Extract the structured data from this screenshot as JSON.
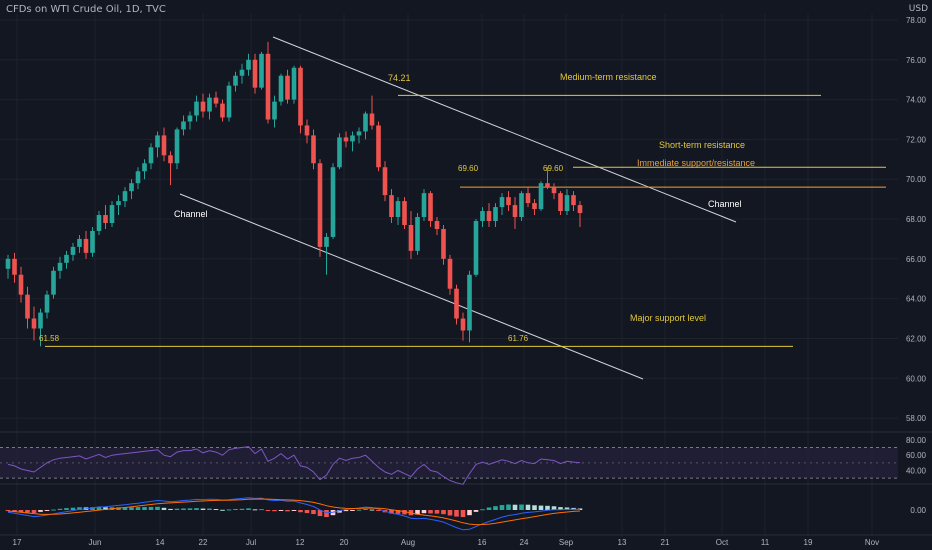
{
  "header": {
    "title": "CFDs on WTI Crude Oil, 1D, TVC",
    "currency": "USD"
  },
  "colors": {
    "background": "#131722",
    "up": "#26a69a",
    "down": "#ef5350",
    "grid": "#1e222d",
    "axis_text": "#b2b5be",
    "channel": "#d1d4dc",
    "level": "#e2c83a",
    "immediate_level": "#f0a13a",
    "rsi_line": "#7e57c2",
    "rsi_band": "#2a2444",
    "macd_line": "#2962ff",
    "signal_line": "#ff6d00"
  },
  "chart_data": {
    "type": "candlestick",
    "price_axis": {
      "ticks": [
        "78.00",
        "76.00",
        "74.00",
        "72.00",
        "70.00",
        "68.00",
        "66.00",
        "64.00",
        "62.00",
        "60.00",
        "58.00"
      ],
      "ylim": [
        57.3,
        78.3
      ]
    },
    "date_axis": {
      "ticks": [
        "17",
        "Jun",
        "14",
        "22",
        "Jul",
        "12",
        "20",
        "Aug",
        "16",
        "24",
        "Sep",
        "13",
        "21",
        "Oct",
        "11",
        "19",
        "Nov"
      ]
    },
    "candles": [
      [
        65.5,
        66.2,
        65.0,
        66.0
      ],
      [
        66.0,
        66.3,
        64.8,
        65.2
      ],
      [
        65.2,
        65.6,
        63.8,
        64.2
      ],
      [
        64.2,
        64.6,
        62.5,
        63.0
      ],
      [
        63.0,
        63.6,
        61.9,
        62.5
      ],
      [
        62.5,
        63.5,
        61.6,
        63.3
      ],
      [
        63.3,
        64.4,
        63.0,
        64.2
      ],
      [
        64.2,
        65.6,
        64.0,
        65.4
      ],
      [
        65.4,
        66.1,
        65.0,
        65.8
      ],
      [
        65.8,
        66.4,
        65.5,
        66.2
      ],
      [
        66.2,
        66.8,
        65.9,
        66.6
      ],
      [
        66.6,
        67.2,
        66.3,
        67.0
      ],
      [
        67.0,
        67.4,
        66.0,
        66.3
      ],
      [
        66.3,
        67.6,
        66.1,
        67.4
      ],
      [
        67.4,
        68.4,
        67.2,
        68.2
      ],
      [
        68.2,
        68.7,
        67.5,
        67.8
      ],
      [
        67.8,
        68.9,
        67.6,
        68.7
      ],
      [
        68.7,
        69.2,
        68.2,
        68.9
      ],
      [
        68.9,
        69.6,
        68.6,
        69.4
      ],
      [
        69.4,
        70.0,
        69.0,
        69.8
      ],
      [
        69.8,
        70.6,
        69.5,
        70.4
      ],
      [
        70.4,
        71.0,
        70.0,
        70.8
      ],
      [
        70.8,
        71.8,
        70.5,
        71.6
      ],
      [
        71.6,
        72.4,
        71.1,
        72.2
      ],
      [
        72.2,
        72.6,
        70.9,
        71.2
      ],
      [
        71.2,
        71.4,
        69.7,
        70.8
      ],
      [
        70.8,
        72.6,
        70.5,
        72.5
      ],
      [
        72.5,
        73.2,
        72.2,
        72.9
      ],
      [
        72.9,
        73.4,
        72.5,
        73.2
      ],
      [
        73.2,
        74.2,
        72.9,
        73.9
      ],
      [
        73.9,
        74.3,
        73.1,
        73.4
      ],
      [
        73.4,
        74.3,
        73.0,
        74.1
      ],
      [
        74.1,
        74.4,
        73.6,
        73.8
      ],
      [
        73.8,
        74.0,
        72.9,
        73.1
      ],
      [
        73.1,
        74.9,
        72.9,
        74.7
      ],
      [
        74.7,
        75.4,
        74.4,
        75.2
      ],
      [
        75.2,
        75.8,
        74.8,
        75.5
      ],
      [
        75.5,
        76.3,
        75.2,
        76.0
      ],
      [
        76.0,
        76.3,
        74.3,
        74.6
      ],
      [
        74.6,
        76.4,
        74.5,
        76.3
      ],
      [
        76.3,
        76.9,
        72.8,
        73.0
      ],
      [
        73.0,
        74.2,
        72.6,
        73.9
      ],
      [
        73.9,
        75.3,
        73.7,
        75.2
      ],
      [
        75.2,
        75.5,
        73.8,
        74.0
      ],
      [
        74.0,
        75.7,
        73.8,
        75.6
      ],
      [
        75.6,
        75.7,
        72.3,
        72.7
      ],
      [
        72.7,
        73.0,
        71.8,
        72.2
      ],
      [
        72.2,
        72.5,
        70.5,
        70.8
      ],
      [
        70.8,
        71.0,
        66.1,
        66.6
      ],
      [
        66.6,
        67.3,
        65.2,
        67.1
      ],
      [
        67.1,
        70.8,
        67.0,
        70.6
      ],
      [
        70.6,
        72.3,
        70.5,
        72.1
      ],
      [
        72.1,
        72.4,
        71.6,
        71.9
      ],
      [
        71.9,
        72.4,
        71.4,
        72.2
      ],
      [
        72.2,
        72.6,
        71.8,
        72.4
      ],
      [
        72.4,
        73.4,
        72.0,
        73.3
      ],
      [
        73.3,
        74.2,
        72.5,
        72.7
      ],
      [
        72.7,
        72.9,
        70.4,
        70.6
      ],
      [
        70.6,
        70.9,
        68.9,
        69.2
      ],
      [
        69.2,
        69.5,
        67.8,
        68.1
      ],
      [
        68.1,
        69.1,
        67.7,
        68.9
      ],
      [
        68.9,
        69.1,
        67.5,
        67.7
      ],
      [
        67.7,
        68.4,
        66.0,
        66.4
      ],
      [
        66.4,
        68.3,
        66.2,
        68.1
      ],
      [
        68.1,
        69.5,
        67.9,
        69.3
      ],
      [
        69.3,
        69.4,
        67.6,
        67.9
      ],
      [
        67.9,
        68.1,
        67.2,
        67.5
      ],
      [
        67.5,
        67.7,
        65.7,
        66.0
      ],
      [
        66.0,
        66.2,
        64.2,
        64.5
      ],
      [
        64.5,
        64.7,
        62.7,
        63.0
      ],
      [
        63.0,
        63.3,
        61.9,
        62.4
      ],
      [
        62.4,
        65.4,
        61.8,
        65.2
      ],
      [
        65.2,
        68.0,
        65.1,
        67.9
      ],
      [
        67.9,
        68.6,
        67.6,
        68.4
      ],
      [
        68.4,
        68.8,
        67.6,
        67.9
      ],
      [
        67.9,
        68.8,
        67.6,
        68.6
      ],
      [
        68.6,
        69.3,
        68.2,
        69.1
      ],
      [
        69.1,
        69.4,
        68.4,
        68.7
      ],
      [
        68.7,
        69.1,
        67.5,
        68.1
      ],
      [
        68.1,
        69.4,
        67.9,
        69.3
      ],
      [
        69.3,
        69.6,
        68.6,
        68.8
      ],
      [
        68.8,
        69.0,
        68.2,
        68.5
      ],
      [
        68.5,
        69.9,
        68.4,
        69.8
      ],
      [
        69.8,
        70.6,
        69.5,
        69.6
      ],
      [
        69.6,
        69.8,
        69.0,
        69.3
      ],
      [
        69.3,
        69.4,
        68.2,
        68.4
      ],
      [
        68.4,
        69.5,
        68.2,
        69.2
      ],
      [
        69.2,
        69.4,
        68.4,
        68.7
      ],
      [
        68.7,
        68.9,
        67.6,
        68.3
      ]
    ],
    "levels": [
      {
        "name": "Medium-term resistance",
        "value": 74.21,
        "label": "74.21"
      },
      {
        "name": "Short-term resistance",
        "value": 70.6
      },
      {
        "name": "Immediate support/resistance",
        "value": 69.6,
        "label": "69.60"
      },
      {
        "name": "Major support level",
        "value": 61.6
      }
    ],
    "annotations": {
      "low1": "61.58",
      "low2": "61.76",
      "high_a": "69.60",
      "high_b": "69.60",
      "channel_lower": "Channel",
      "channel_upper": "Channel",
      "medium_term": "Medium-term resistance",
      "short_term": "Short-term resistance",
      "immediate": "Immediate support/resistance",
      "major_support": "Major support level"
    },
    "rsi": {
      "ticks": [
        "80.00",
        "60.00",
        "40.00"
      ],
      "upper_band": 70,
      "lower_band": 30,
      "middle": 50,
      "values": [
        48,
        46,
        42,
        40,
        38,
        44,
        50,
        54,
        56,
        57,
        58,
        59,
        55,
        58,
        61,
        57,
        60,
        61,
        62,
        63,
        64,
        65,
        66,
        67,
        60,
        58,
        64,
        66,
        66,
        68,
        63,
        66,
        64,
        60,
        67,
        69,
        70,
        71,
        62,
        68,
        52,
        56,
        62,
        55,
        60,
        46,
        44,
        38,
        28,
        34,
        48,
        56,
        53,
        56,
        57,
        60,
        52,
        44,
        38,
        35,
        40,
        36,
        32,
        42,
        48,
        40,
        38,
        32,
        27,
        24,
        22,
        36,
        48,
        51,
        48,
        51,
        54,
        52,
        49,
        53,
        50,
        49,
        55,
        54,
        53,
        49,
        52,
        51,
        50
      ]
    },
    "macd": {
      "ticks": [
        "0.00"
      ],
      "macd": [
        -0.2,
        -0.3,
        -0.4,
        -0.5,
        -0.6,
        -0.55,
        -0.45,
        -0.35,
        -0.25,
        -0.15,
        -0.05,
        0.05,
        0.1,
        0.18,
        0.28,
        0.3,
        0.36,
        0.42,
        0.48,
        0.55,
        0.62,
        0.7,
        0.78,
        0.86,
        0.82,
        0.75,
        0.8,
        0.86,
        0.9,
        0.96,
        0.95,
        0.98,
        0.96,
        0.9,
        0.94,
        1.0,
        1.05,
        1.12,
        1.05,
        1.08,
        0.92,
        0.85,
        0.88,
        0.8,
        0.82,
        0.65,
        0.5,
        0.32,
        0.0,
        -0.25,
        -0.2,
        -0.05,
        0.05,
        0.12,
        0.18,
        0.26,
        0.22,
        0.08,
        -0.1,
        -0.3,
        -0.4,
        -0.55,
        -0.75,
        -0.8,
        -0.75,
        -0.85,
        -0.95,
        -1.1,
        -1.35,
        -1.6,
        -1.8,
        -1.75,
        -1.5,
        -1.25,
        -1.05,
        -0.85,
        -0.65,
        -0.5,
        -0.42,
        -0.3,
        -0.22,
        -0.17,
        -0.1,
        -0.02,
        0.03,
        0.02,
        0.05,
        0.06,
        0.05
      ],
      "signal": [
        -0.1,
        -0.15,
        -0.2,
        -0.27,
        -0.33,
        -0.38,
        -0.4,
        -0.39,
        -0.36,
        -0.32,
        -0.26,
        -0.2,
        -0.14,
        -0.08,
        -0.01,
        0.05,
        0.11,
        0.17,
        0.23,
        0.3,
        0.36,
        0.43,
        0.5,
        0.57,
        0.62,
        0.65,
        0.68,
        0.72,
        0.75,
        0.79,
        0.82,
        0.85,
        0.87,
        0.88,
        0.89,
        0.91,
        0.94,
        0.97,
        0.99,
        1.0,
        0.99,
        0.96,
        0.94,
        0.92,
        0.9,
        0.85,
        0.78,
        0.69,
        0.55,
        0.39,
        0.27,
        0.19,
        0.15,
        0.14,
        0.15,
        0.17,
        0.18,
        0.16,
        0.11,
        0.03,
        -0.05,
        -0.15,
        -0.27,
        -0.38,
        -0.46,
        -0.54,
        -0.62,
        -0.72,
        -0.85,
        -1.0,
        -1.16,
        -1.28,
        -1.33,
        -1.32,
        -1.28,
        -1.2,
        -1.1,
        -1.0,
        -0.9,
        -0.8,
        -0.7,
        -0.6,
        -0.5,
        -0.4,
        -0.31,
        -0.24,
        -0.18,
        -0.13,
        -0.09
      ],
      "histogram": [
        -0.1,
        -0.15,
        -0.2,
        -0.23,
        -0.27,
        -0.17,
        -0.05,
        0.04,
        0.11,
        0.17,
        0.21,
        0.25,
        0.24,
        0.26,
        0.29,
        0.25,
        0.25,
        0.25,
        0.25,
        0.25,
        0.26,
        0.27,
        0.28,
        0.29,
        0.2,
        0.1,
        0.12,
        0.14,
        0.15,
        0.17,
        0.13,
        0.13,
        0.09,
        0.02,
        0.05,
        0.09,
        0.11,
        0.15,
        0.06,
        0.08,
        -0.07,
        -0.11,
        -0.06,
        -0.12,
        -0.08,
        -0.2,
        -0.28,
        -0.37,
        -0.55,
        -0.64,
        -0.47,
        -0.24,
        -0.1,
        -0.02,
        0.03,
        0.09,
        0.04,
        -0.08,
        -0.21,
        -0.33,
        -0.35,
        -0.4,
        -0.48,
        -0.42,
        -0.29,
        -0.31,
        -0.33,
        -0.38,
        -0.5,
        -0.6,
        -0.64,
        -0.47,
        -0.17,
        0.07,
        0.23,
        0.35,
        0.45,
        0.5,
        0.48,
        0.5,
        0.48,
        0.43,
        0.4,
        0.38,
        0.34,
        0.26,
        0.23,
        0.19,
        0.14
      ]
    }
  }
}
